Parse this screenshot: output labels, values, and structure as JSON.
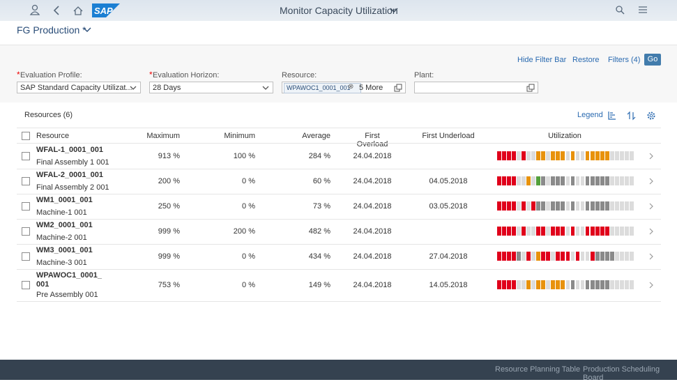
{
  "shell": {
    "title": "Monitor Capacity Utilization",
    "logo": "SAP"
  },
  "variant": "FG Production *",
  "filter_bar": {
    "actions": [
      "Hide Filter Bar",
      "Restore",
      "Filters (4)",
      "Go"
    ],
    "fields": [
      {
        "marker": "*",
        "label": "Evaluation Profile:",
        "value": "SAP Standard Capacity Utilizat..."
      },
      {
        "marker": "*",
        "label": "Evaluation Horizon:",
        "value": "28 Days"
      },
      {
        "label": "Resource:",
        "token": "WPAWOC1_0001_001",
        "value": "5 More"
      },
      {
        "label": "Plant:"
      }
    ]
  },
  "table": {
    "title": "Resources (6)",
    "legend": "Legend",
    "columns": [
      "Resource",
      "Maximum",
      "Minimum",
      "Average",
      "First Overload",
      "First Underload",
      "Utilization"
    ],
    "rows": [
      {
        "id": "WFAL-1_0001_001",
        "description": "Final Assembly 1 001",
        "maximum": "913 %",
        "minimum": "100 %",
        "average": "284 %",
        "first_overload": "24.04.2018",
        "utilization": [
          "#e0001b",
          "#e0001b",
          "#e0001b",
          "#e0001b",
          "#dcdcdc",
          "#e0001b",
          "#dcdcdc",
          "#dcdcdc",
          "#e8920c",
          "#e8920c",
          "#dcdcdc",
          "#e8920c",
          "#e8920c",
          "#e8920c",
          "#dcdcdc",
          "#e8920c",
          "#dcdcdc",
          "#dcdcdc",
          "#e8920c",
          "#e8920c",
          "#e8920c",
          "#e8920c",
          "#e8920c",
          "#dcdcdc",
          "#dcdcdc",
          "#dcdcdc",
          "#dcdcdc",
          "#dcdcdc"
        ]
      },
      {
        "id": "WFAL-2_0001_001",
        "description": "Final Assembly 2 001",
        "maximum": "200 %",
        "minimum": "0 %",
        "average": "60 %",
        "first_overload": "24.04.2018",
        "first_underload": "04.05.2018",
        "utilization": [
          "#e0001b",
          "#e0001b",
          "#e0001b",
          "#e0001b",
          "#dcdcdc",
          "#dcdcdc",
          "#e8920c",
          "#dcdcdc",
          "#53a03b",
          "#8a8a8a",
          "#dcdcdc",
          "#8a8a8a",
          "#8a8a8a",
          "#8a8a8a",
          "#dcdcdc",
          "#8a8a8a",
          "#dcdcdc",
          "#dcdcdc",
          "#8a8a8a",
          "#8a8a8a",
          "#8a8a8a",
          "#8a8a8a",
          "#8a8a8a",
          "#dcdcdc",
          "#dcdcdc",
          "#dcdcdc",
          "#dcdcdc",
          "#dcdcdc"
        ]
      },
      {
        "id": "WM1_0001_001",
        "description": "Machine-1 001",
        "maximum": "250 %",
        "minimum": "0 %",
        "average": "73 %",
        "first_overload": "24.04.2018",
        "first_underload": "03.05.2018",
        "utilization": [
          "#e0001b",
          "#e0001b",
          "#e0001b",
          "#e0001b",
          "#dcdcdc",
          "#e0001b",
          "#dcdcdc",
          "#e0001b",
          "#8a8a8a",
          "#8a8a8a",
          "#dcdcdc",
          "#8a8a8a",
          "#8a8a8a",
          "#8a8a8a",
          "#dcdcdc",
          "#8a8a8a",
          "#dcdcdc",
          "#dcdcdc",
          "#8a8a8a",
          "#8a8a8a",
          "#8a8a8a",
          "#8a8a8a",
          "#8a8a8a",
          "#dcdcdc",
          "#dcdcdc",
          "#dcdcdc",
          "#dcdcdc",
          "#dcdcdc"
        ]
      },
      {
        "id": "WM2_0001_001",
        "description": "Machine-2 001",
        "maximum": "999 %",
        "minimum": "200 %",
        "average": "482 %",
        "first_overload": "24.04.2018",
        "utilization": [
          "#e0001b",
          "#e0001b",
          "#e0001b",
          "#e0001b",
          "#dcdcdc",
          "#e0001b",
          "#dcdcdc",
          "#dcdcdc",
          "#e0001b",
          "#e0001b",
          "#dcdcdc",
          "#e0001b",
          "#e0001b",
          "#e0001b",
          "#dcdcdc",
          "#e0001b",
          "#dcdcdc",
          "#dcdcdc",
          "#e0001b",
          "#e0001b",
          "#e0001b",
          "#e0001b",
          "#e0001b",
          "#dcdcdc",
          "#dcdcdc",
          "#dcdcdc",
          "#dcdcdc",
          "#dcdcdc"
        ]
      },
      {
        "id": "WM3_0001_001",
        "description": "Machine-3 001",
        "maximum": "999 %",
        "minimum": "0 %",
        "average": "434 %",
        "first_overload": "24.04.2018",
        "first_underload": "27.04.2018",
        "utilization": [
          "#e0001b",
          "#e0001b",
          "#e0001b",
          "#e0001b",
          "#8a8a8a",
          "#dcdcdc",
          "#e0001b",
          "#dcdcdc",
          "#e8920c",
          "#e0001b",
          "#e0001b",
          "#dcdcdc",
          "#e0001b",
          "#e0001b",
          "#e0001b",
          "#dcdcdc",
          "#e0001b",
          "#dcdcdc",
          "#dcdcdc",
          "#e0001b",
          "#8a8a8a",
          "#8a8a8a",
          "#8a8a8a",
          "#8a8a8a",
          "#dcdcdc",
          "#dcdcdc",
          "#dcdcdc",
          "#dcdcdc"
        ]
      },
      {
        "id": "WPAWOC1_0001_001",
        "description": "Pre Assembly 001",
        "maximum": "753 %",
        "minimum": "0 %",
        "average": "149 %",
        "first_overload": "24.04.2018",
        "first_underload": "14.05.2018",
        "utilization": [
          "#e0001b",
          "#e0001b",
          "#e0001b",
          "#e0001b",
          "#dcdcdc",
          "#dcdcdc",
          "#e8920c",
          "#dcdcdc",
          "#e8920c",
          "#e8920c",
          "#dcdcdc",
          "#e8920c",
          "#e8920c",
          "#e8920c",
          "#dcdcdc",
          "#8a8a8a",
          "#dcdcdc",
          "#dcdcdc",
          "#8a8a8a",
          "#8a8a8a",
          "#8a8a8a",
          "#8a8a8a",
          "#8a8a8a",
          "#dcdcdc",
          "#dcdcdc",
          "#dcdcdc",
          "#dcdcdc",
          "#dcdcdc"
        ]
      }
    ]
  },
  "footer": {
    "buttons": [
      "Resource Planning Table",
      "Production Scheduling Board"
    ]
  }
}
